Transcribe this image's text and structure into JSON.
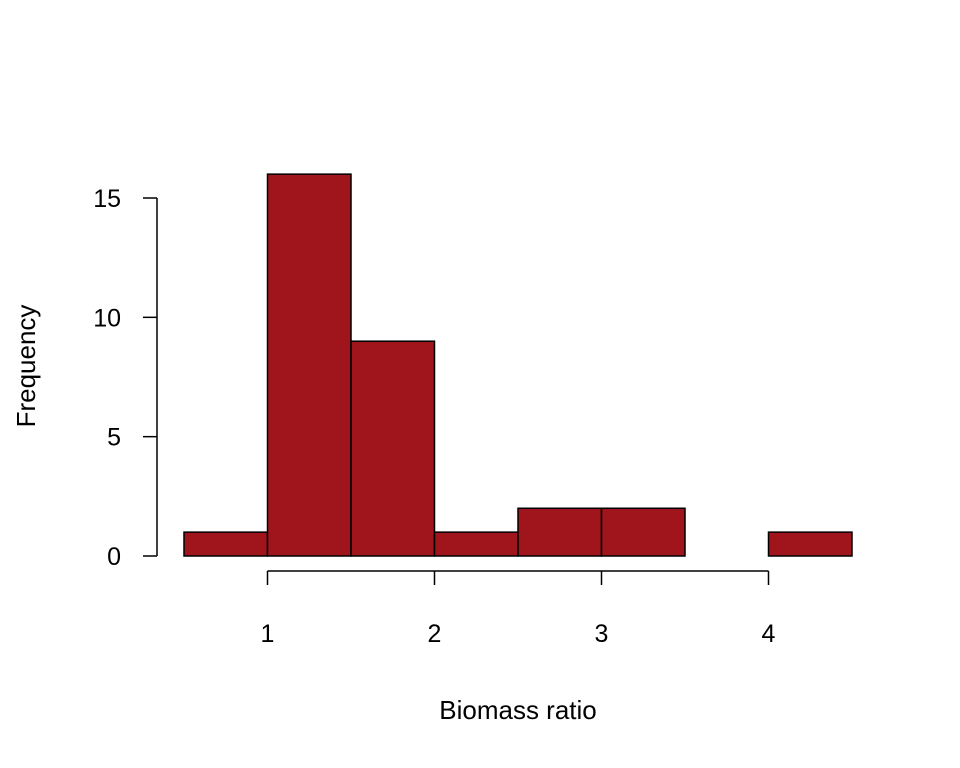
{
  "chart_data": {
    "type": "bar",
    "subtype": "histogram",
    "title": "",
    "xlabel": "Biomass ratio",
    "ylabel": "Frequency",
    "bins": [
      {
        "start": 0.5,
        "end": 1.0,
        "count": 1
      },
      {
        "start": 1.0,
        "end": 1.5,
        "count": 16
      },
      {
        "start": 1.5,
        "end": 2.0,
        "count": 9
      },
      {
        "start": 2.0,
        "end": 2.5,
        "count": 1
      },
      {
        "start": 2.5,
        "end": 3.0,
        "count": 2
      },
      {
        "start": 3.0,
        "end": 3.5,
        "count": 2
      },
      {
        "start": 3.5,
        "end": 4.0,
        "count": 0
      },
      {
        "start": 4.0,
        "end": 4.5,
        "count": 1
      }
    ],
    "xticks": [
      1,
      2,
      3,
      4
    ],
    "yticks": [
      0,
      5,
      10,
      15
    ],
    "xlim": [
      0.5,
      4.5
    ],
    "ylim": [
      0,
      16
    ],
    "grid": false,
    "bar_color": "#A0141C",
    "edge_color": "#000000"
  }
}
